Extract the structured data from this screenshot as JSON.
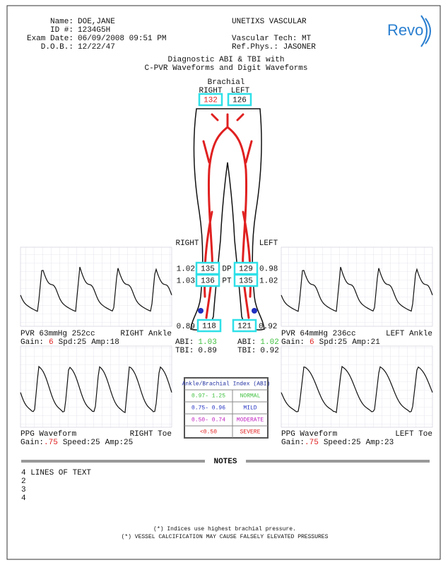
{
  "header": {
    "name_label": "Name:",
    "name": "DOE,JANE",
    "id_label": "ID #:",
    "id": "1234G5H",
    "exam_label": "Exam Date:",
    "exam_date": "06/09/2008 09:51 PM",
    "dob_label": "D.O.B.:",
    "dob": "12/22/47",
    "facility": "UNETIXS VASCULAR",
    "tech": "Vascular Tech: MT",
    "physician": "Ref.Phys.: JASONER",
    "logo": "Revo"
  },
  "title": [
    "Diagnostic ABI & TBI with",
    "C-PVR Waveforms and Digit Waveforms"
  ],
  "brachial": {
    "label": "Brachial",
    "right_label": "RIGHT",
    "left_label": "LEFT",
    "right": 132,
    "left": 126
  },
  "legs": {
    "right_label": "RIGHT",
    "left_label": "LEFT",
    "dp": {
      "label": "DP",
      "right": 135,
      "left": 129,
      "right_index": "1.02",
      "left_index": "0.98"
    },
    "pt": {
      "label": "PT",
      "right": 136,
      "left": 135,
      "right_index": "1.03",
      "left_index": "1.02"
    },
    "toe": {
      "right": 118,
      "left": 121,
      "right_index": "0.89",
      "left_index": "0.92"
    }
  },
  "results": {
    "abi_label": "ABI:",
    "tbi_label": "TBI:",
    "right_abi": "1.03",
    "left_abi": "1.02",
    "right_tbi": "0.89",
    "left_tbi": "0.92"
  },
  "pvr_right": {
    "caption": "PVR 63mmHg 252cc",
    "site": "RIGHT Ankle",
    "gain_label": "Gain:",
    "gain": "6",
    "speed": "Spd:25",
    "amp": "Amp:18"
  },
  "pvr_left": {
    "caption": "PVR 64mmHg 236cc",
    "site": "LEFT Ankle",
    "gain_label": "Gain:",
    "gain": "6",
    "speed": "Spd:25",
    "amp": "Amp:21"
  },
  "ppg_right": {
    "caption": "PPG Waveform",
    "site": "RIGHT Toe",
    "gain_label": "Gain:",
    "gain": ".75",
    "speed": "Speed:25",
    "amp": "Amp:25"
  },
  "ppg_left": {
    "caption": "PPG Waveform",
    "site": "LEFT Toe",
    "gain_label": "Gain:",
    "gain": ".75",
    "speed": "Speed:25",
    "amp": "Amp:23"
  },
  "abi_table": {
    "title": "Ankle/Brachial Index (ABI)",
    "rows": [
      [
        "0.97- 1.25",
        "NORMAL"
      ],
      [
        "0.75- 0.96",
        "MILD"
      ],
      [
        "0.50- 0.74",
        "MODERATE"
      ],
      [
        "<0.50",
        "SEVERE"
      ]
    ]
  },
  "notes": {
    "title": "NOTES",
    "lines": [
      "4 LINES OF TEXT",
      "2",
      "3",
      "4"
    ],
    "footnotes": [
      "(*) Indices use highest brachial pressure.",
      "(*) VESSEL CALCIFICATION MAY CAUSE FALSELY ELEVATED PRESSURES"
    ]
  }
}
